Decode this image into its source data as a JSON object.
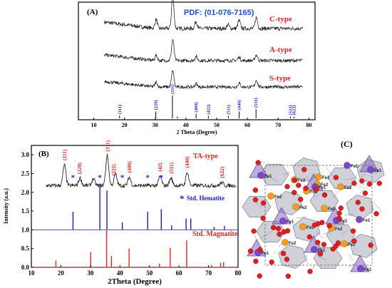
{
  "chart_data": [
    {
      "id": "A",
      "type": "line",
      "panel_label": "(A)",
      "xlabel": "2 Theta (Degree)",
      "xlim": [
        5,
        82
      ],
      "x_ticks": [
        10,
        20,
        30,
        40,
        50,
        60,
        70,
        80
      ],
      "y_ticks_shown": false,
      "annotation": "PDF: (01-076-7165)",
      "series": [
        {
          "name": "C-type",
          "color": "#e8231f",
          "line_color": "#111111",
          "peaks": [
            [
              30.3,
              0.28
            ],
            [
              35.7,
              1.0
            ],
            [
              43.3,
              0.22
            ],
            [
              53.7,
              0.12
            ],
            [
              57.3,
              0.25
            ],
            [
              62.9,
              0.35
            ]
          ]
        },
        {
          "name": "A-type",
          "color": "#e8231f",
          "line_color": "#111111",
          "peaks": [
            [
              30.3,
              0.18
            ],
            [
              35.7,
              0.75
            ],
            [
              43.3,
              0.14
            ],
            [
              57.3,
              0.12
            ],
            [
              62.9,
              0.2
            ]
          ]
        },
        {
          "name": "S-type",
          "color": "#e8231f",
          "line_color": "#111111",
          "peaks": [
            [
              30.3,
              0.18
            ],
            [
              35.7,
              0.6
            ],
            [
              43.3,
              0.12
            ],
            [
              57.3,
              0.14
            ],
            [
              62.9,
              0.25
            ]
          ]
        }
      ],
      "reference_lines": {
        "color": "#1a1ac8",
        "lines": [
          {
            "x": 18.4,
            "label": "(111)",
            "height": 0.12
          },
          {
            "x": 30.2,
            "label": "(220)",
            "height": 0.3
          },
          {
            "x": 35.6,
            "label": "(311)",
            "height": 1.0
          },
          {
            "x": 37.2,
            "label": "",
            "height": 0.08
          },
          {
            "x": 43.3,
            "label": "(400)",
            "height": 0.2
          },
          {
            "x": 47.3,
            "label": "(422)",
            "height": 0.1
          },
          {
            "x": 53.8,
            "label": "(511)",
            "height": 0.1
          },
          {
            "x": 57.3,
            "label": "(440)",
            "height": 0.3
          },
          {
            "x": 62.8,
            "label": "(531)",
            "height": 0.4
          },
          {
            "x": 74.0,
            "label": "(533)",
            "height": 0.08
          },
          {
            "x": 75.2,
            "label": "(622)",
            "height": 0.08
          }
        ]
      }
    },
    {
      "id": "B",
      "type": "line",
      "panel_label": "(B)",
      "xlabel": "2Theta (Degree)",
      "ylabel": "Intensity (a.u.)",
      "xlim": [
        10,
        80
      ],
      "ylim": [
        0,
        3.25
      ],
      "x_ticks": [
        10,
        20,
        30,
        40,
        50,
        60,
        70,
        80
      ],
      "y_ticks": [
        0.0,
        0.5,
        1.0,
        1.5,
        2.0,
        2.5,
        3.0
      ],
      "series": [
        {
          "name": "TA-type",
          "color": "#e8231f",
          "line_color": "#111111",
          "baseline": 2.18,
          "peaks": [
            [
              21.2,
              0.55
            ],
            [
              26.5,
              0.2
            ],
            [
              31.0,
              0.18
            ],
            [
              35.7,
              0.8
            ],
            [
              38.5,
              0.3
            ],
            [
              43.2,
              0.22
            ],
            [
              53.6,
              0.25
            ],
            [
              57.3,
              0.2
            ],
            [
              62.8,
              0.35
            ],
            [
              74.5,
              0.08
            ]
          ],
          "peak_labels": [
            {
              "x": 21.2,
              "label": "(111)"
            },
            {
              "x": 26.3,
              "label": "(220)"
            },
            {
              "x": 35.8,
              "label": "(311)"
            },
            {
              "x": 37.9,
              "label": "(222)"
            },
            {
              "x": 43.2,
              "label": "(400)"
            },
            {
              "x": 53.6,
              "label": "(42)"
            },
            {
              "x": 57.4,
              "label": "(511)"
            },
            {
              "x": 62.8,
              "label": "(440)"
            },
            {
              "x": 74.6,
              "label": "(622)"
            }
          ],
          "hematite_markers": [
            24.1,
            33.2,
            40.8,
            49.4,
            54.0
          ]
        },
        {
          "name": "Std. Hematite",
          "color": "#1a1ac8",
          "baseline": 1.0,
          "peaks": [
            [
              24.1,
              0.48
            ],
            [
              33.2,
              1.22
            ],
            [
              35.6,
              1.05
            ],
            [
              40.8,
              0.2
            ],
            [
              49.4,
              0.48
            ],
            [
              54.0,
              0.55
            ],
            [
              57.5,
              0.12
            ],
            [
              62.4,
              0.3
            ],
            [
              64.0,
              0.3
            ],
            [
              71.9,
              0.08
            ],
            [
              75.4,
              0.1
            ]
          ]
        },
        {
          "name": "Std. Magnatite",
          "color": "#e8231f",
          "baseline": 0.0,
          "peaks": [
            [
              18.3,
              0.18
            ],
            [
              30.1,
              0.4
            ],
            [
              35.5,
              0.98
            ],
            [
              37.1,
              0.3
            ],
            [
              43.1,
              0.5
            ],
            [
              53.4,
              0.1
            ],
            [
              57.0,
              0.52
            ],
            [
              62.6,
              0.72
            ],
            [
              71.0,
              0.06
            ],
            [
              74.1,
              0.12
            ],
            [
              75.1,
              0.14
            ]
          ]
        }
      ],
      "legend_star": "*"
    },
    {
      "id": "C",
      "type": "table",
      "panel_label": "(C)",
      "atom_labels": [
        "Fe1",
        "Fe2"
      ]
    }
  ]
}
